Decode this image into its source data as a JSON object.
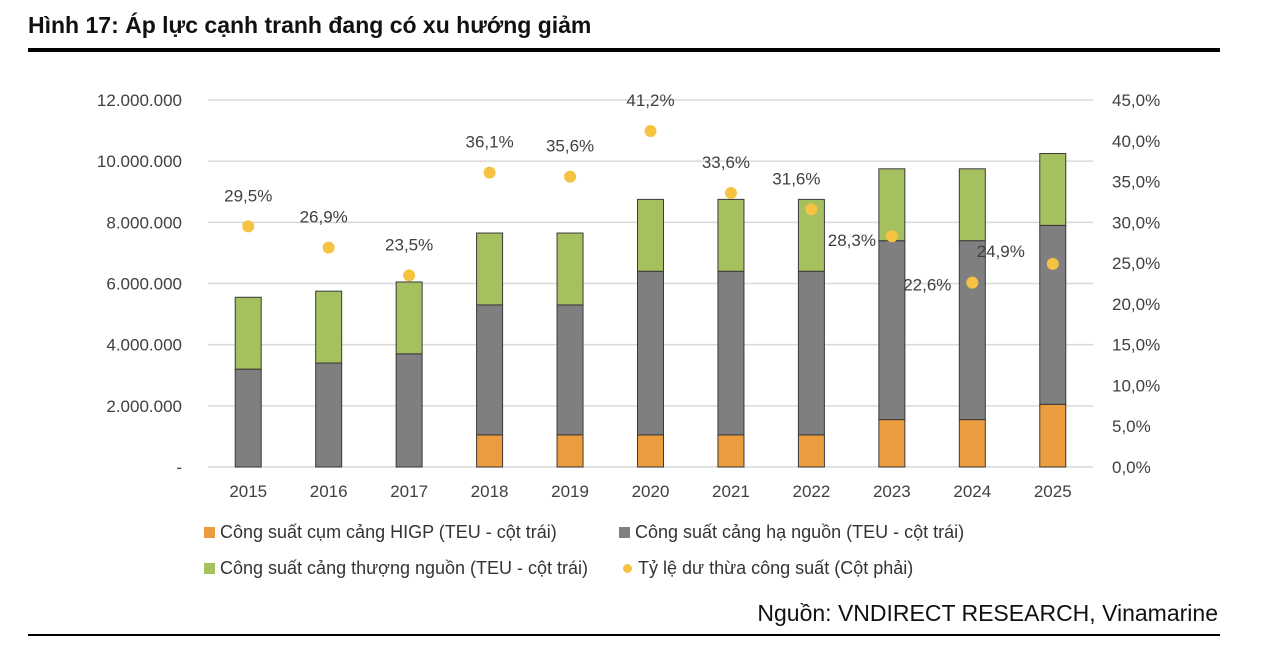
{
  "title": "Hình 17: Áp lực cạnh tranh đang có xu hướng giảm",
  "source": "Nguồn: VNDIRECT RESEARCH, Vinamarine",
  "colors": {
    "higp": "#EB9C3E",
    "downstream": "#7F7F7F",
    "upstream": "#A5C05F",
    "ratio": "#F5C242",
    "grid": "#D9D9D9"
  },
  "chart_data": {
    "type": "bar",
    "stacked": true,
    "categories": [
      "2015",
      "2016",
      "2017",
      "2018",
      "2019",
      "2020",
      "2021",
      "2022",
      "2023",
      "2024",
      "2025"
    ],
    "series": [
      {
        "name": "Công suất cụm cảng HIGP (TEU - cột trái)",
        "axis": "left",
        "values": [
          0,
          0,
          0,
          1050000,
          1050000,
          1050000,
          1050000,
          1050000,
          1550000,
          1550000,
          2050000
        ]
      },
      {
        "name": "Công suất cảng hạ nguồn (TEU - cột trái)",
        "axis": "left",
        "values": [
          3200000,
          3400000,
          3700000,
          4250000,
          4250000,
          5350000,
          5350000,
          5350000,
          5850000,
          5850000,
          5850000
        ]
      },
      {
        "name": "Công suất cảng thượng nguồn (TEU - cột trái)",
        "axis": "left",
        "values": [
          2350000,
          2350000,
          2350000,
          2350000,
          2350000,
          2350000,
          2350000,
          2350000,
          2350000,
          2350000,
          2350000
        ]
      }
    ],
    "line_series": {
      "name": "Tỷ lệ dư thừa công suất (Cột phải)",
      "axis": "right",
      "type": "scatter",
      "values": [
        29.5,
        26.9,
        23.5,
        36.1,
        35.6,
        41.2,
        33.6,
        31.6,
        28.3,
        22.6,
        24.9
      ],
      "labels": [
        "29,5%",
        "26,9%",
        "23,5%",
        "36,1%",
        "35,6%",
        "41,2%",
        "33,6%",
        "31,6%",
        "28,3%",
        "22,6%",
        "24,9%"
      ]
    },
    "y_left": {
      "min": 0,
      "max": 12000000,
      "ticks": [
        "-",
        "2.000.000",
        "4.000.000",
        "6.000.000",
        "8.000.000",
        "10.000.000",
        "12.000.000"
      ]
    },
    "y_right": {
      "min": 0,
      "max": 45,
      "ticks": [
        "0,0%",
        "5,0%",
        "10,0%",
        "15,0%",
        "20,0%",
        "25,0%",
        "30,0%",
        "35,0%",
        "40,0%",
        "45,0%"
      ]
    },
    "legend": [
      {
        "label": "Công suất cụm cảng HIGP (TEU - cột trái)",
        "color_key": "higp",
        "shape": "square"
      },
      {
        "label": "Công suất cảng hạ nguồn (TEU - cột trái)",
        "color_key": "downstream",
        "shape": "square"
      },
      {
        "label": "Công suất cảng thượng nguồn (TEU - cột trái)",
        "color_key": "upstream",
        "shape": "square"
      },
      {
        "label": "Tỷ lệ dư thừa công suất (Cột phải)",
        "color_key": "ratio",
        "shape": "dot"
      }
    ]
  }
}
